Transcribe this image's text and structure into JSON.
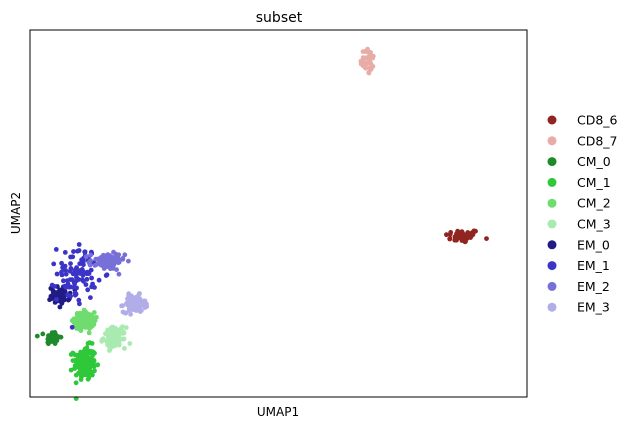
{
  "chart_data": {
    "type": "scatter",
    "title": "subset",
    "xlabel": "UMAP1",
    "ylabel": "UMAP2",
    "xticks": "none",
    "yticks": "none",
    "grid": false,
    "legend_placement": "right, outside plot",
    "xlim": [
      -6,
      14
    ],
    "ylim": [
      -4,
      9
    ],
    "series": [
      {
        "name": "CD8_6",
        "color": "#8f2420",
        "center": [
          11.4,
          1.7
        ],
        "spread": [
          0.35,
          0.12
        ],
        "count": 45
      },
      {
        "name": "CD8_7",
        "color": "#e8aca6",
        "center": [
          7.6,
          7.9
        ],
        "spread": [
          0.15,
          0.25
        ],
        "count": 35
      },
      {
        "name": "CM_0",
        "color": "#1f8a2c",
        "center": [
          -5.1,
          -1.9
        ],
        "spread": [
          0.15,
          0.12
        ],
        "count": 40
      },
      {
        "name": "CM_1",
        "color": "#2fc83a",
        "center": [
          -3.8,
          -2.8
        ],
        "spread": [
          0.22,
          0.3
        ],
        "count": 150
      },
      {
        "name": "CM_2",
        "color": "#6fdc6f",
        "center": [
          -3.8,
          -1.3
        ],
        "spread": [
          0.2,
          0.15
        ],
        "count": 120
      },
      {
        "name": "CM_3",
        "color": "#a9eab0",
        "center": [
          -2.6,
          -1.9
        ],
        "spread": [
          0.22,
          0.18
        ],
        "count": 110
      },
      {
        "name": "EM_0",
        "color": "#211c85",
        "center": [
          -4.8,
          -0.4
        ],
        "spread": [
          0.2,
          0.15
        ],
        "count": 60
      },
      {
        "name": "EM_1",
        "color": "#3b34c6",
        "center": [
          -4.1,
          0.4
        ],
        "spread": [
          0.4,
          0.5
        ],
        "count": 90
      },
      {
        "name": "EM_2",
        "color": "#7870d9",
        "center": [
          -2.9,
          0.8
        ],
        "spread": [
          0.35,
          0.15
        ],
        "count": 80
      },
      {
        "name": "EM_3",
        "color": "#b1ade8",
        "center": [
          -1.8,
          -0.7
        ],
        "spread": [
          0.22,
          0.15
        ],
        "count": 90
      }
    ]
  }
}
